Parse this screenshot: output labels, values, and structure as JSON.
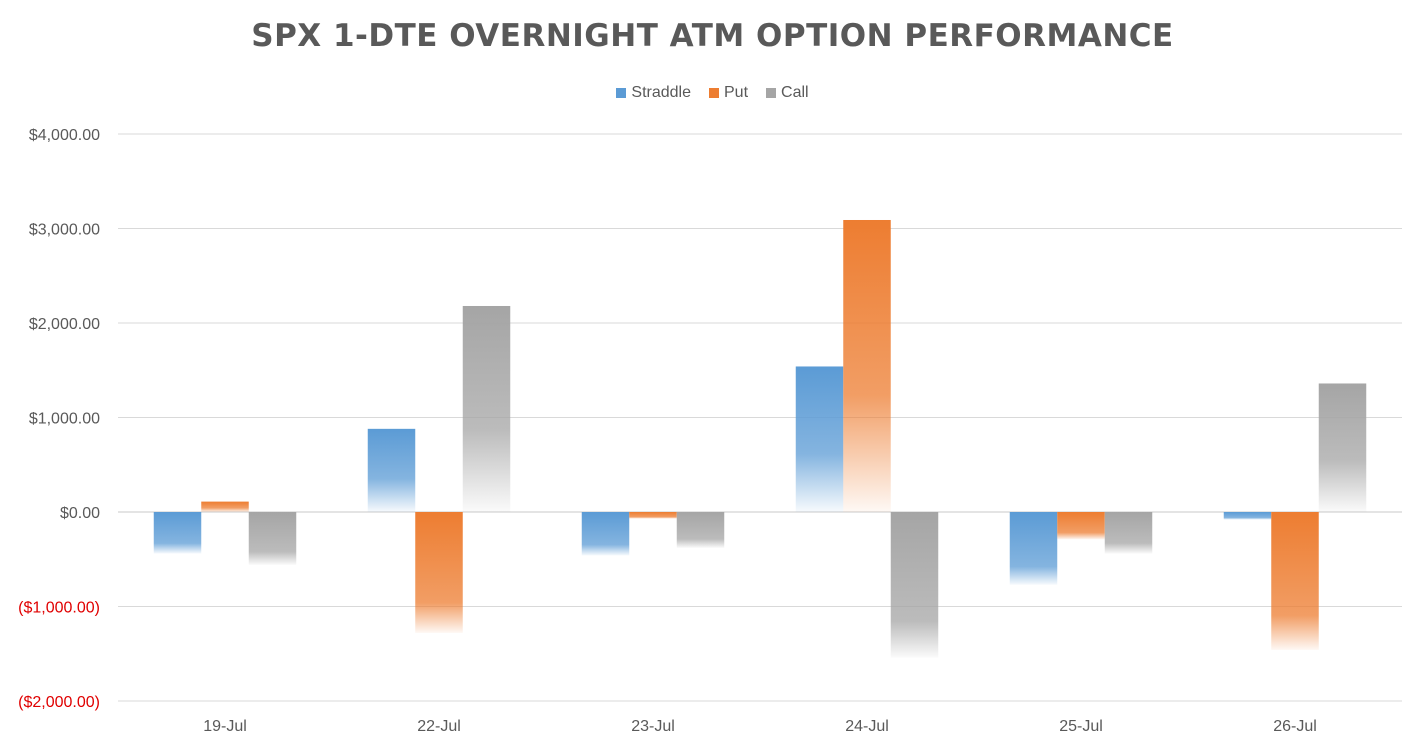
{
  "chart_data": {
    "type": "bar",
    "title": "SPX 1-DTE OVERNIGHT ATM OPTION PERFORMANCE",
    "categories": [
      "19-Jul",
      "22-Jul",
      "23-Jul",
      "24-Jul",
      "25-Jul",
      "26-Jul"
    ],
    "series": [
      {
        "name": "Straddle",
        "color": "#5b9bd5",
        "values": [
          -440,
          880,
          -460,
          1540,
          -770,
          -80
        ]
      },
      {
        "name": "Put",
        "color": "#ed7d31",
        "values": [
          110,
          -1280,
          -70,
          3090,
          -290,
          -1460
        ]
      },
      {
        "name": "Call",
        "color": "#a5a5a5",
        "values": [
          -560,
          2180,
          -380,
          -1540,
          -440,
          1360
        ]
      }
    ],
    "ylim": [
      -2000,
      4000
    ],
    "yticks": [
      {
        "value": 4000,
        "label": "$4,000.00"
      },
      {
        "value": 3000,
        "label": "$3,000.00"
      },
      {
        "value": 2000,
        "label": "$2,000.00"
      },
      {
        "value": 1000,
        "label": "$1,000.00"
      },
      {
        "value": 0,
        "label": "$0.00"
      },
      {
        "value": -1000,
        "label": "($1,000.00)"
      },
      {
        "value": -2000,
        "label": "($2,000.00)"
      }
    ],
    "negative_tick_color": "#e00000",
    "legend_position": "top-center",
    "grid": true,
    "xlabel": "",
    "ylabel": ""
  }
}
